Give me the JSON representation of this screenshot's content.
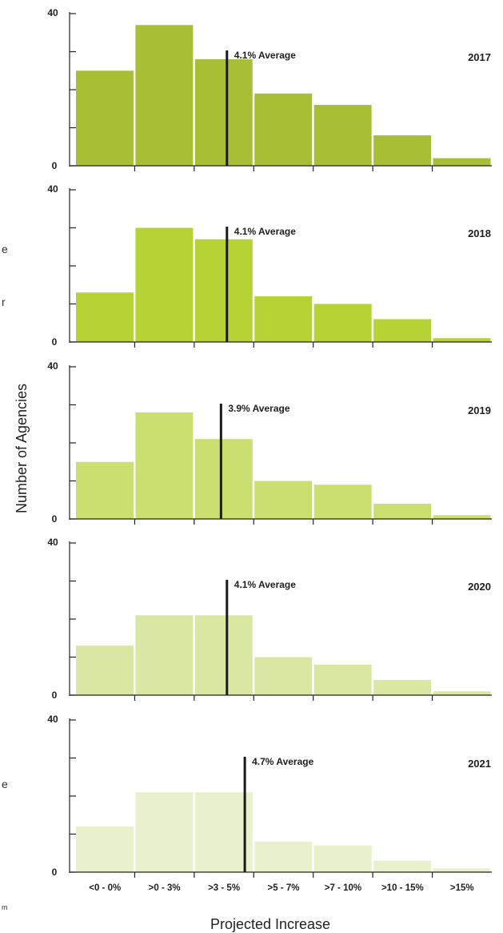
{
  "chart_data": {
    "type": "bar",
    "xlabel": "Projected Increase",
    "ylabel": "Number of Agencies",
    "categories": [
      "<0 - 0%",
      ">0 - 3%",
      ">3 - 5%",
      ">5 - 7%",
      ">7 - 10%",
      ">10 - 15%",
      ">15%"
    ],
    "ylim": [
      0,
      40
    ],
    "y_tick_labels": [
      "0",
      "40"
    ],
    "y_ticks": [
      0,
      10,
      20,
      30,
      40
    ],
    "panels": [
      {
        "name": "2017",
        "values": [
          25,
          37,
          28,
          19,
          16,
          8,
          2
        ],
        "average": 4.1,
        "average_label": "4.1% Average",
        "color": "#a8bf35"
      },
      {
        "name": "2018",
        "values": [
          13,
          30,
          27,
          12,
          10,
          6,
          1
        ],
        "average": 4.1,
        "average_label": "4.1% Average",
        "color": "#b5d334"
      },
      {
        "name": "2019",
        "values": [
          15,
          28,
          21,
          10,
          9,
          4,
          1
        ],
        "average": 3.9,
        "average_label": "3.9% Average",
        "color": "#c9df6f"
      },
      {
        "name": "2020",
        "values": [
          13,
          21,
          21,
          10,
          8,
          4,
          1
        ],
        "average": 4.1,
        "average_label": "4.1% Average",
        "color": "#d8e8a2"
      },
      {
        "name": "2021",
        "values": [
          12,
          21,
          21,
          8,
          7,
          3,
          1
        ],
        "average": 4.7,
        "average_label": "4.7% Average",
        "color": "#e8f1cc"
      }
    ]
  },
  "edge_fragments": [
    "e",
    "r",
    "e",
    "m"
  ]
}
